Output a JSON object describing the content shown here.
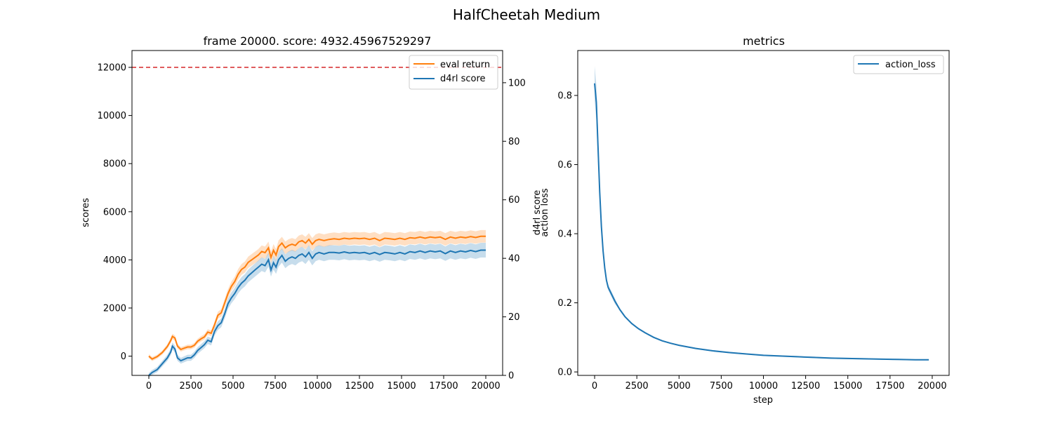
{
  "figure": {
    "suptitle": "HalfCheetah Medium"
  },
  "colors": {
    "eval_return": "#ff7f0e",
    "d4rl_score": "#1f77b4",
    "action_loss": "#1f77b4",
    "reference_line": "#d62728"
  },
  "chart_data": [
    {
      "type": "line",
      "title": "frame 20000. score: 4932.45967529297",
      "xlabel": "",
      "ylabel": "scores",
      "ylabel_right": "d4rl score",
      "xlim": [
        -1000,
        21000
      ],
      "ylim": [
        -800,
        12700
      ],
      "ylim_right": [
        0,
        111
      ],
      "xticks": [
        0,
        2500,
        5000,
        7500,
        10000,
        12500,
        15000,
        17500,
        20000
      ],
      "yticks": [
        0,
        2000,
        4000,
        6000,
        8000,
        10000,
        12000
      ],
      "yticks_right": [
        0,
        20,
        40,
        60,
        80,
        100
      ],
      "reference_line": {
        "y": 12000,
        "style": "dashed"
      },
      "legend": {
        "position": "top-right",
        "entries": [
          "eval return",
          "d4rl score"
        ]
      },
      "series": [
        {
          "name": "eval return",
          "axis": "left",
          "shaded": true,
          "points": [
            [
              0,
              0
            ],
            [
              200,
              -120
            ],
            [
              500,
              -20
            ],
            [
              800,
              150
            ],
            [
              1100,
              400
            ],
            [
              1300,
              650
            ],
            [
              1400,
              820
            ],
            [
              1550,
              750
            ],
            [
              1700,
              420
            ],
            [
              1900,
              280
            ],
            [
              2100,
              330
            ],
            [
              2300,
              380
            ],
            [
              2500,
              380
            ],
            [
              2700,
              450
            ],
            [
              2900,
              620
            ],
            [
              3100,
              720
            ],
            [
              3300,
              800
            ],
            [
              3500,
              1000
            ],
            [
              3700,
              950
            ],
            [
              3900,
              1300
            ],
            [
              4100,
              1700
            ],
            [
              4300,
              1800
            ],
            [
              4500,
              2200
            ],
            [
              4700,
              2600
            ],
            [
              4900,
              2900
            ],
            [
              5100,
              3100
            ],
            [
              5300,
              3400
            ],
            [
              5500,
              3600
            ],
            [
              5700,
              3700
            ],
            [
              5900,
              3900
            ],
            [
              6100,
              4000
            ],
            [
              6300,
              4100
            ],
            [
              6500,
              4200
            ],
            [
              6700,
              4350
            ],
            [
              6900,
              4300
            ],
            [
              7100,
              4500
            ],
            [
              7250,
              4100
            ],
            [
              7400,
              4400
            ],
            [
              7550,
              4200
            ],
            [
              7700,
              4550
            ],
            [
              7900,
              4700
            ],
            [
              8100,
              4500
            ],
            [
              8300,
              4600
            ],
            [
              8500,
              4650
            ],
            [
              8700,
              4600
            ],
            [
              8900,
              4750
            ],
            [
              9100,
              4800
            ],
            [
              9300,
              4700
            ],
            [
              9500,
              4850
            ],
            [
              9700,
              4650
            ],
            [
              9900,
              4800
            ],
            [
              10100,
              4850
            ],
            [
              10400,
              4800
            ],
            [
              10700,
              4850
            ],
            [
              11000,
              4880
            ],
            [
              11300,
              4850
            ],
            [
              11600,
              4900
            ],
            [
              11900,
              4870
            ],
            [
              12200,
              4900
            ],
            [
              12500,
              4880
            ],
            [
              12800,
              4900
            ],
            [
              13100,
              4850
            ],
            [
              13400,
              4900
            ],
            [
              13700,
              4800
            ],
            [
              14000,
              4900
            ],
            [
              14300,
              4880
            ],
            [
              14600,
              4850
            ],
            [
              14900,
              4900
            ],
            [
              15200,
              4850
            ],
            [
              15500,
              4920
            ],
            [
              15800,
              4900
            ],
            [
              16100,
              4950
            ],
            [
              16400,
              4900
            ],
            [
              16700,
              4950
            ],
            [
              17000,
              4920
            ],
            [
              17300,
              4950
            ],
            [
              17600,
              4850
            ],
            [
              17900,
              4950
            ],
            [
              18200,
              4900
            ],
            [
              18500,
              4950
            ],
            [
              18800,
              4920
            ],
            [
              19100,
              4970
            ],
            [
              19400,
              4930
            ],
            [
              19700,
              4980
            ],
            [
              20000,
              4980
            ]
          ]
        },
        {
          "name": "d4rl score",
          "axis": "right",
          "shaded": true,
          "points": [
            [
              0,
              0
            ],
            [
              200,
              1
            ],
            [
              500,
              2
            ],
            [
              800,
              4
            ],
            [
              1100,
              6
            ],
            [
              1300,
              8
            ],
            [
              1400,
              10
            ],
            [
              1550,
              9
            ],
            [
              1700,
              6
            ],
            [
              1900,
              5
            ],
            [
              2100,
              5.5
            ],
            [
              2300,
              6
            ],
            [
              2500,
              6
            ],
            [
              2700,
              7
            ],
            [
              2900,
              8.5
            ],
            [
              3100,
              9.5
            ],
            [
              3300,
              10.5
            ],
            [
              3500,
              12
            ],
            [
              3700,
              11.5
            ],
            [
              3900,
              15
            ],
            [
              4100,
              17
            ],
            [
              4300,
              18
            ],
            [
              4500,
              21
            ],
            [
              4700,
              24.5
            ],
            [
              4900,
              26.5
            ],
            [
              5100,
              28
            ],
            [
              5300,
              30
            ],
            [
              5500,
              31.5
            ],
            [
              5700,
              32.5
            ],
            [
              5900,
              34
            ],
            [
              6100,
              35
            ],
            [
              6300,
              36
            ],
            [
              6500,
              37
            ],
            [
              6700,
              38
            ],
            [
              6900,
              37.5
            ],
            [
              7100,
              39.5
            ],
            [
              7250,
              36
            ],
            [
              7400,
              38.5
            ],
            [
              7550,
              37
            ],
            [
              7700,
              39.5
            ],
            [
              7900,
              41
            ],
            [
              8100,
              39
            ],
            [
              8300,
              40
            ],
            [
              8500,
              40.5
            ],
            [
              8700,
              40
            ],
            [
              8900,
              41
            ],
            [
              9100,
              41.5
            ],
            [
              9300,
              40.5
            ],
            [
              9500,
              42
            ],
            [
              9700,
              40
            ],
            [
              9900,
              41.5
            ],
            [
              10100,
              42
            ],
            [
              10400,
              41.5
            ],
            [
              10700,
              42
            ],
            [
              11000,
              42
            ],
            [
              11300,
              41.8
            ],
            [
              11600,
              42.2
            ],
            [
              11900,
              41.8
            ],
            [
              12200,
              42
            ],
            [
              12500,
              41.8
            ],
            [
              12800,
              42
            ],
            [
              13100,
              41.5
            ],
            [
              13400,
              42
            ],
            [
              13700,
              41.3
            ],
            [
              14000,
              42
            ],
            [
              14300,
              41.8
            ],
            [
              14600,
              41.5
            ],
            [
              14900,
              42
            ],
            [
              15200,
              41.5
            ],
            [
              15500,
              42.3
            ],
            [
              15800,
              42
            ],
            [
              16100,
              42.5
            ],
            [
              16400,
              42
            ],
            [
              16700,
              42.5
            ],
            [
              17000,
              42.2
            ],
            [
              17300,
              42.5
            ],
            [
              17600,
              41.6
            ],
            [
              17900,
              42.5
            ],
            [
              18200,
              42
            ],
            [
              18500,
              42.5
            ],
            [
              18800,
              42.2
            ],
            [
              19100,
              42.7
            ],
            [
              19400,
              42.3
            ],
            [
              19700,
              42.8
            ],
            [
              20000,
              42.8
            ]
          ]
        }
      ]
    },
    {
      "type": "line",
      "title": "metrics",
      "xlabel": "step",
      "ylabel": "action loss",
      "xlim": [
        -1000,
        21000
      ],
      "ylim": [
        -0.01,
        0.93
      ],
      "xticks": [
        0,
        2500,
        5000,
        7500,
        10000,
        12500,
        15000,
        17500,
        20000
      ],
      "yticks": [
        0.0,
        0.2,
        0.4,
        0.6,
        0.8
      ],
      "legend": {
        "position": "top-right",
        "entries": [
          "action_loss"
        ]
      },
      "series": [
        {
          "name": "action_loss",
          "shaded": true,
          "points": [
            [
              0,
              0.835
            ],
            [
              100,
              0.78
            ],
            [
              200,
              0.65
            ],
            [
              300,
              0.52
            ],
            [
              400,
              0.42
            ],
            [
              500,
              0.35
            ],
            [
              600,
              0.3
            ],
            [
              700,
              0.265
            ],
            [
              800,
              0.245
            ],
            [
              1000,
              0.225
            ],
            [
              1200,
              0.205
            ],
            [
              1500,
              0.18
            ],
            [
              1800,
              0.16
            ],
            [
              2200,
              0.14
            ],
            [
              2600,
              0.125
            ],
            [
              3000,
              0.113
            ],
            [
              3500,
              0.1
            ],
            [
              4000,
              0.09
            ],
            [
              4500,
              0.083
            ],
            [
              5000,
              0.077
            ],
            [
              6000,
              0.068
            ],
            [
              7000,
              0.061
            ],
            [
              8000,
              0.056
            ],
            [
              9000,
              0.052
            ],
            [
              10000,
              0.048
            ],
            [
              11000,
              0.046
            ],
            [
              12000,
              0.044
            ],
            [
              13000,
              0.042
            ],
            [
              14000,
              0.04
            ],
            [
              15000,
              0.039
            ],
            [
              16000,
              0.038
            ],
            [
              17000,
              0.037
            ],
            [
              18000,
              0.036
            ],
            [
              19000,
              0.035
            ],
            [
              19800,
              0.035
            ]
          ]
        }
      ]
    }
  ]
}
